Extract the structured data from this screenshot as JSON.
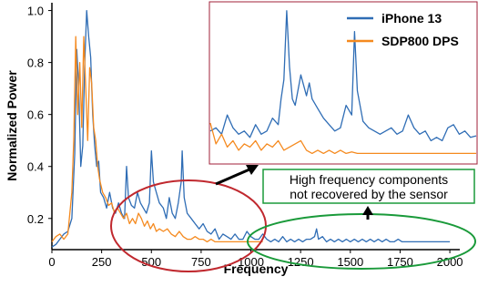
{
  "chart_data": {
    "type": "line",
    "title": "",
    "xlabel": "Frequency",
    "ylabel": "Normalized Power",
    "xlim": [
      0,
      2050
    ],
    "ylim": [
      0.08,
      1.03
    ],
    "x_ticks": [
      0,
      250,
      500,
      750,
      1000,
      1250,
      1500,
      1750,
      2000
    ],
    "x_tick_labels": [
      "0",
      "250",
      "500",
      "750",
      "1000",
      "1250",
      "1500",
      "1750",
      "2000"
    ],
    "y_ticks": [
      0.2,
      0.4,
      0.6,
      0.8,
      1.0
    ],
    "y_tick_labels": [
      "0.2",
      "0.4",
      "0.6",
      "0.8",
      "1.0"
    ],
    "grid": false,
    "legend_position": "top-right",
    "series": [
      {
        "name": "iPhone 13",
        "color": "#2f6db5",
        "points": [
          [
            0,
            0.09
          ],
          [
            20,
            0.1
          ],
          [
            40,
            0.12
          ],
          [
            60,
            0.14
          ],
          [
            80,
            0.15
          ],
          [
            100,
            0.2
          ],
          [
            115,
            0.45
          ],
          [
            125,
            0.85
          ],
          [
            135,
            0.7
          ],
          [
            145,
            0.4
          ],
          [
            155,
            0.48
          ],
          [
            165,
            0.8
          ],
          [
            175,
            1.0
          ],
          [
            185,
            0.9
          ],
          [
            195,
            0.82
          ],
          [
            205,
            0.6
          ],
          [
            215,
            0.48
          ],
          [
            225,
            0.4
          ],
          [
            235,
            0.42
          ],
          [
            245,
            0.3
          ],
          [
            260,
            0.28
          ],
          [
            275,
            0.24
          ],
          [
            290,
            0.3
          ],
          [
            305,
            0.24
          ],
          [
            320,
            0.22
          ],
          [
            335,
            0.26
          ],
          [
            350,
            0.22
          ],
          [
            365,
            0.2
          ],
          [
            375,
            0.4
          ],
          [
            385,
            0.28
          ],
          [
            400,
            0.25
          ],
          [
            415,
            0.24
          ],
          [
            430,
            0.3
          ],
          [
            445,
            0.26
          ],
          [
            460,
            0.24
          ],
          [
            475,
            0.22
          ],
          [
            490,
            0.26
          ],
          [
            500,
            0.46
          ],
          [
            510,
            0.34
          ],
          [
            525,
            0.3
          ],
          [
            540,
            0.26
          ],
          [
            560,
            0.24
          ],
          [
            575,
            0.2
          ],
          [
            590,
            0.28
          ],
          [
            605,
            0.22
          ],
          [
            620,
            0.2
          ],
          [
            635,
            0.26
          ],
          [
            650,
            0.34
          ],
          [
            655,
            0.46
          ],
          [
            665,
            0.28
          ],
          [
            680,
            0.22
          ],
          [
            700,
            0.2
          ],
          [
            720,
            0.18
          ],
          [
            740,
            0.16
          ],
          [
            760,
            0.18
          ],
          [
            780,
            0.15
          ],
          [
            800,
            0.14
          ],
          [
            820,
            0.16
          ],
          [
            840,
            0.12
          ],
          [
            860,
            0.14
          ],
          [
            880,
            0.13
          ],
          [
            900,
            0.12
          ],
          [
            920,
            0.14
          ],
          [
            940,
            0.12
          ],
          [
            960,
            0.12
          ],
          [
            980,
            0.15
          ],
          [
            1000,
            0.13
          ],
          [
            1020,
            0.12
          ],
          [
            1040,
            0.12
          ],
          [
            1060,
            0.14
          ],
          [
            1080,
            0.12
          ],
          [
            1100,
            0.11
          ],
          [
            1120,
            0.12
          ],
          [
            1140,
            0.11
          ],
          [
            1160,
            0.13
          ],
          [
            1180,
            0.11
          ],
          [
            1200,
            0.12
          ],
          [
            1220,
            0.11
          ],
          [
            1240,
            0.12
          ],
          [
            1260,
            0.11
          ],
          [
            1280,
            0.12
          ],
          [
            1300,
            0.12
          ],
          [
            1320,
            0.13
          ],
          [
            1330,
            0.16
          ],
          [
            1340,
            0.12
          ],
          [
            1360,
            0.13
          ],
          [
            1380,
            0.11
          ],
          [
            1400,
            0.12
          ],
          [
            1420,
            0.11
          ],
          [
            1440,
            0.12
          ],
          [
            1460,
            0.11
          ],
          [
            1480,
            0.12
          ],
          [
            1500,
            0.11
          ],
          [
            1520,
            0.12
          ],
          [
            1540,
            0.11
          ],
          [
            1560,
            0.12
          ],
          [
            1580,
            0.11
          ],
          [
            1600,
            0.12
          ],
          [
            1620,
            0.11
          ],
          [
            1640,
            0.12
          ],
          [
            1660,
            0.11
          ],
          [
            1680,
            0.12
          ],
          [
            1700,
            0.11
          ],
          [
            1720,
            0.11
          ],
          [
            1740,
            0.12
          ],
          [
            1760,
            0.11
          ],
          [
            1780,
            0.11
          ],
          [
            1800,
            0.11
          ],
          [
            1820,
            0.11
          ],
          [
            1840,
            0.11
          ],
          [
            1860,
            0.11
          ],
          [
            1880,
            0.11
          ],
          [
            1900,
            0.11
          ],
          [
            1920,
            0.11
          ],
          [
            1940,
            0.11
          ],
          [
            1960,
            0.11
          ],
          [
            1980,
            0.11
          ],
          [
            2000,
            0.11
          ]
        ]
      },
      {
        "name": "SDP800 DPS",
        "color": "#f58a1f",
        "points": [
          [
            0,
            0.11
          ],
          [
            20,
            0.13
          ],
          [
            40,
            0.14
          ],
          [
            60,
            0.12
          ],
          [
            80,
            0.14
          ],
          [
            100,
            0.3
          ],
          [
            110,
            0.5
          ],
          [
            120,
            0.9
          ],
          [
            130,
            0.6
          ],
          [
            140,
            0.8
          ],
          [
            150,
            0.55
          ],
          [
            160,
            0.9
          ],
          [
            170,
            0.7
          ],
          [
            180,
            0.5
          ],
          [
            190,
            0.78
          ],
          [
            200,
            0.72
          ],
          [
            210,
            0.55
          ],
          [
            220,
            0.5
          ],
          [
            230,
            0.4
          ],
          [
            240,
            0.35
          ],
          [
            255,
            0.3
          ],
          [
            270,
            0.28
          ],
          [
            285,
            0.25
          ],
          [
            300,
            0.26
          ],
          [
            315,
            0.22
          ],
          [
            330,
            0.24
          ],
          [
            345,
            0.22
          ],
          [
            360,
            0.2
          ],
          [
            375,
            0.22
          ],
          [
            390,
            0.18
          ],
          [
            405,
            0.2
          ],
          [
            420,
            0.18
          ],
          [
            435,
            0.22
          ],
          [
            450,
            0.2
          ],
          [
            465,
            0.17
          ],
          [
            480,
            0.19
          ],
          [
            495,
            0.16
          ],
          [
            510,
            0.18
          ],
          [
            525,
            0.15
          ],
          [
            540,
            0.16
          ],
          [
            560,
            0.15
          ],
          [
            580,
            0.16
          ],
          [
            600,
            0.14
          ],
          [
            620,
            0.13
          ],
          [
            640,
            0.15
          ],
          [
            660,
            0.13
          ],
          [
            680,
            0.12
          ],
          [
            700,
            0.12
          ],
          [
            720,
            0.13
          ],
          [
            740,
            0.12
          ],
          [
            760,
            0.12
          ],
          [
            780,
            0.11
          ],
          [
            800,
            0.12
          ],
          [
            820,
            0.11
          ],
          [
            840,
            0.11
          ],
          [
            860,
            0.11
          ],
          [
            880,
            0.11
          ],
          [
            900,
            0.11
          ],
          [
            920,
            0.11
          ],
          [
            940,
            0.11
          ],
          [
            960,
            0.11
          ],
          [
            980,
            0.11
          ],
          [
            1000,
            0.11
          ],
          [
            1020,
            0.11
          ],
          [
            1040,
            0.11
          ],
          [
            1060,
            0.11
          ]
        ]
      }
    ],
    "inset": {
      "xlim": [
        1060,
        2000
      ],
      "ylim": [
        0.0,
        1.0
      ],
      "series": [
        {
          "name": "iPhone 13",
          "color": "#2f6db5",
          "points": [
            [
              1060,
              0.2
            ],
            [
              1080,
              0.22
            ],
            [
              1100,
              0.18
            ],
            [
              1120,
              0.3
            ],
            [
              1140,
              0.22
            ],
            [
              1160,
              0.18
            ],
            [
              1180,
              0.2
            ],
            [
              1200,
              0.16
            ],
            [
              1220,
              0.24
            ],
            [
              1240,
              0.18
            ],
            [
              1260,
              0.2
            ],
            [
              1280,
              0.28
            ],
            [
              1300,
              0.24
            ],
            [
              1310,
              0.4
            ],
            [
              1320,
              0.52
            ],
            [
              1330,
              0.95
            ],
            [
              1340,
              0.6
            ],
            [
              1350,
              0.4
            ],
            [
              1360,
              0.36
            ],
            [
              1380,
              0.55
            ],
            [
              1400,
              0.42
            ],
            [
              1410,
              0.5
            ],
            [
              1420,
              0.4
            ],
            [
              1440,
              0.34
            ],
            [
              1460,
              0.28
            ],
            [
              1480,
              0.24
            ],
            [
              1500,
              0.2
            ],
            [
              1520,
              0.22
            ],
            [
              1540,
              0.36
            ],
            [
              1560,
              0.3
            ],
            [
              1570,
              0.82
            ],
            [
              1580,
              0.45
            ],
            [
              1600,
              0.26
            ],
            [
              1620,
              0.22
            ],
            [
              1640,
              0.2
            ],
            [
              1660,
              0.18
            ],
            [
              1680,
              0.2
            ],
            [
              1700,
              0.22
            ],
            [
              1720,
              0.18
            ],
            [
              1740,
              0.2
            ],
            [
              1760,
              0.3
            ],
            [
              1780,
              0.22
            ],
            [
              1800,
              0.18
            ],
            [
              1820,
              0.2
            ],
            [
              1840,
              0.14
            ],
            [
              1860,
              0.16
            ],
            [
              1880,
              0.14
            ],
            [
              1900,
              0.22
            ],
            [
              1920,
              0.24
            ],
            [
              1940,
              0.18
            ],
            [
              1960,
              0.2
            ],
            [
              1980,
              0.16
            ],
            [
              2000,
              0.17
            ]
          ]
        },
        {
          "name": "SDP800 DPS",
          "color": "#f58a1f",
          "points": [
            [
              1060,
              0.25
            ],
            [
              1080,
              0.12
            ],
            [
              1100,
              0.18
            ],
            [
              1120,
              0.1
            ],
            [
              1140,
              0.14
            ],
            [
              1160,
              0.08
            ],
            [
              1180,
              0.12
            ],
            [
              1200,
              0.1
            ],
            [
              1220,
              0.14
            ],
            [
              1240,
              0.08
            ],
            [
              1260,
              0.12
            ],
            [
              1280,
              0.1
            ],
            [
              1300,
              0.14
            ],
            [
              1320,
              0.08
            ],
            [
              1340,
              0.1
            ],
            [
              1360,
              0.12
            ],
            [
              1380,
              0.14
            ],
            [
              1400,
              0.08
            ],
            [
              1420,
              0.06
            ],
            [
              1440,
              0.08
            ],
            [
              1460,
              0.06
            ],
            [
              1480,
              0.08
            ],
            [
              1500,
              0.06
            ],
            [
              1520,
              0.08
            ],
            [
              1540,
              0.06
            ],
            [
              1560,
              0.07
            ],
            [
              1580,
              0.06
            ],
            [
              1600,
              0.06
            ],
            [
              1620,
              0.06
            ],
            [
              1640,
              0.06
            ],
            [
              1660,
              0.06
            ],
            [
              1680,
              0.06
            ],
            [
              1700,
              0.06
            ],
            [
              1720,
              0.06
            ],
            [
              1740,
              0.06
            ],
            [
              1760,
              0.06
            ],
            [
              1780,
              0.06
            ],
            [
              1800,
              0.06
            ],
            [
              1820,
              0.06
            ],
            [
              1840,
              0.06
            ],
            [
              1860,
              0.06
            ],
            [
              1880,
              0.06
            ],
            [
              1900,
              0.06
            ],
            [
              1920,
              0.06
            ],
            [
              1940,
              0.06
            ],
            [
              1960,
              0.06
            ],
            [
              1980,
              0.06
            ],
            [
              2000,
              0.06
            ]
          ]
        }
      ]
    },
    "annotations": [
      {
        "text_lines": [
          "High frequency components",
          "not recovered by the sensor"
        ]
      }
    ],
    "colors": {
      "iphone": "#2f6db5",
      "sdp": "#f58a1f",
      "red_ellipse": "#c0282e",
      "green_ellipse": "#1a9a3a",
      "inset_border": "#a0203a"
    }
  }
}
